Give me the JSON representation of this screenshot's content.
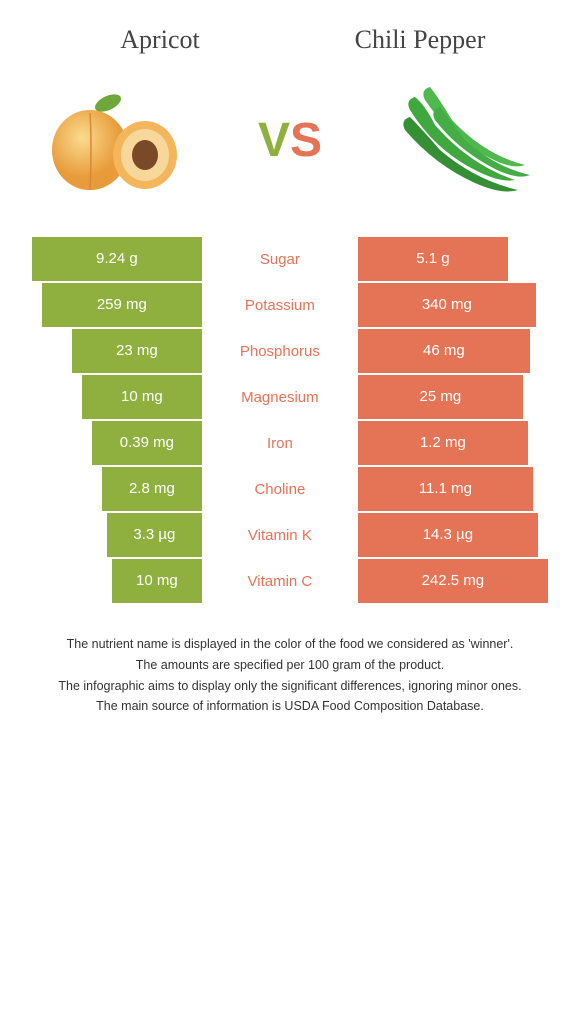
{
  "leftFood": {
    "name": "Apricot",
    "color": "#8fb03e"
  },
  "rightFood": {
    "name": "Chili Pepper",
    "color": "#e57356"
  },
  "vs": {
    "v": "V",
    "s": "S"
  },
  "rows": [
    {
      "nutrient": "Sugar",
      "left": "9.24 g",
      "right": "5.1 g",
      "winner": "right"
    },
    {
      "nutrient": "Potassium",
      "left": "259 mg",
      "right": "340 mg",
      "winner": "right"
    },
    {
      "nutrient": "Phosphorus",
      "left": "23 mg",
      "right": "46 mg",
      "winner": "right"
    },
    {
      "nutrient": "Magnesium",
      "left": "10 mg",
      "right": "25 mg",
      "winner": "right"
    },
    {
      "nutrient": "Iron",
      "left": "0.39 mg",
      "right": "1.2 mg",
      "winner": "right"
    },
    {
      "nutrient": "Choline",
      "left": "2.8 mg",
      "right": "11.1 mg",
      "winner": "right"
    },
    {
      "nutrient": "Vitamin K",
      "left": "3.3 µg",
      "right": "14.3 µg",
      "winner": "right"
    },
    {
      "nutrient": "Vitamin C",
      "left": "10 mg",
      "right": "242.5 mg",
      "winner": "right"
    }
  ],
  "barScale": {
    "leftMax": 190,
    "rightMax": 190,
    "leftWidths": [
      170,
      160,
      130,
      120,
      110,
      100,
      95,
      90
    ],
    "rightWidths": [
      150,
      178,
      172,
      165,
      170,
      175,
      180,
      190
    ]
  },
  "colors": {
    "left": "#8fb03e",
    "right": "#e57356",
    "background": "#ffffff",
    "footerText": "#333333"
  },
  "footer": [
    "The nutrient name is displayed in the color of the food we considered as 'winner'.",
    "The amounts are specified per 100 gram of the product.",
    "The infographic aims to display only the significant differences, ignoring minor ones.",
    "The main source of information is USDA Food Composition Database."
  ]
}
